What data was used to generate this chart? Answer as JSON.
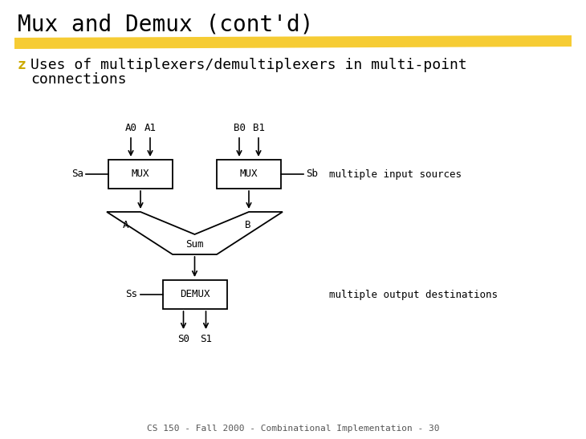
{
  "title": "Mux and Demux (cont'd)",
  "title_fontsize": 20,
  "title_font": "DejaVu Sans",
  "bg_color": "#ffffff",
  "bullet_color": "#ccaa00",
  "bullet_fontsize": 13,
  "highlight_color": "#f5c518",
  "footer_text": "CS 150 - Fall 2000 - Combinational Implementation - 30",
  "footer_fontsize": 8,
  "mux1_label": "MUX",
  "mux2_label": "MUX",
  "demux_label": "DEMUX",
  "a0_label": "A0",
  "a1_label": "A1",
  "b0_label": "B0",
  "b1_label": "B1",
  "sa_label": "Sa",
  "sb_label": "Sb",
  "ss_label": "Ss",
  "s0_label": "S0",
  "s1_label": "S1",
  "a_label": "A",
  "b_label": "B",
  "sum_label": "Sum",
  "note1": "multiple input sources",
  "note2": "multiple output destinations",
  "diagram_font": "monospace",
  "diagram_fontsize": 9,
  "note_fontsize": 9,
  "bullet_line1": "Uses of multiplexers/demultiplexers in multi-point",
  "bullet_line2": "connections"
}
